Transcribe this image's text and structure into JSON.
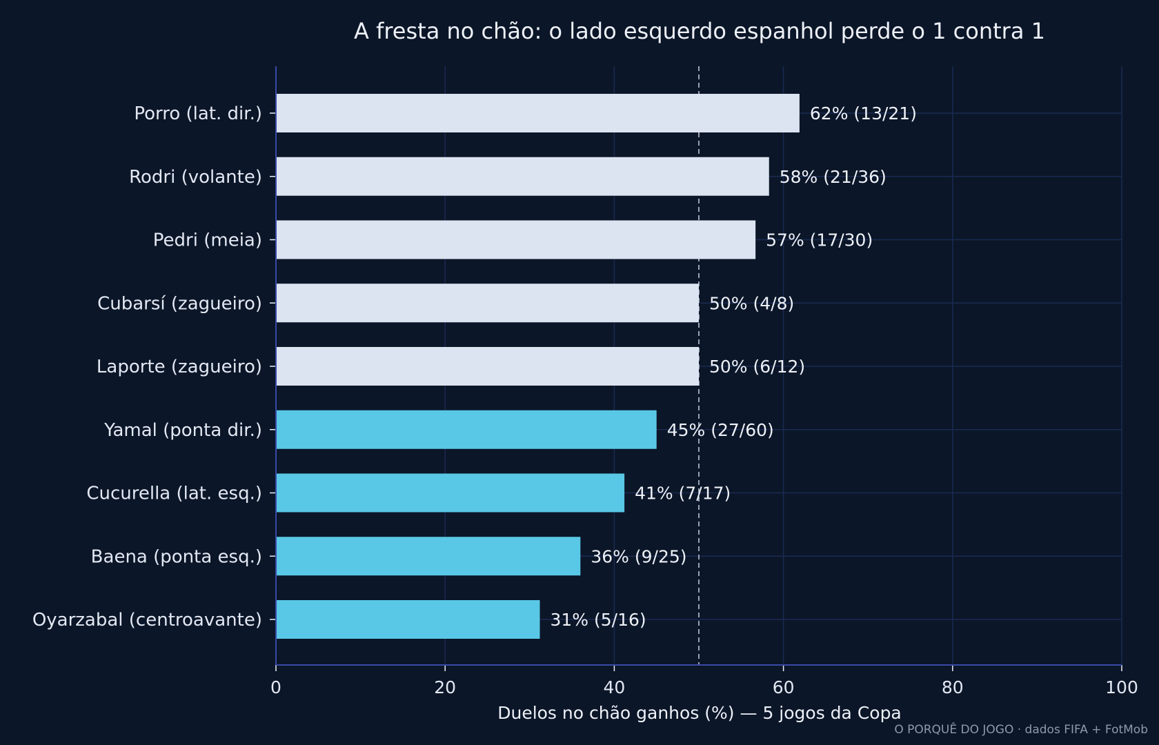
{
  "chart_data": {
    "type": "bar",
    "orientation": "horizontal",
    "title": "A fresta no chão: o lado esquerdo espanhol perde o 1 contra 1",
    "xlabel": "Duelos no chão ganhos (%) — 5 jogos da Copa",
    "ylabel": "",
    "xlim": [
      0,
      100
    ],
    "xticks": [
      0,
      20,
      40,
      60,
      80,
      100
    ],
    "reference_line": 50,
    "grid": true,
    "categories": [
      "Porro (lat. dir.)",
      "Rodri (volante)",
      "Pedri (meia)",
      "Cubarsí (zagueiro)",
      "Laporte (zagueiro)",
      "Yamal (ponta dir.)",
      "Cucurella (lat. esq.)",
      "Baena (ponta esq.)",
      "Oyarzabal (centroavante)"
    ],
    "values": [
      62,
      58,
      57,
      50,
      50,
      45,
      41,
      36,
      31
    ],
    "plot_values": [
      61.9,
      58.3,
      56.7,
      50.0,
      50.0,
      45.0,
      41.2,
      36.0,
      31.2
    ],
    "bar_labels": [
      "62%  (13/21)",
      "58%  (21/36)",
      "57%  (17/30)",
      "50%  (4/8)",
      "50%  (6/12)",
      "45%  (27/60)",
      "41%  (7/17)",
      "36%  (9/25)",
      "31%  (5/16)"
    ],
    "groups": [
      "light",
      "light",
      "light",
      "light",
      "light",
      "highlight",
      "highlight",
      "highlight",
      "highlight"
    ]
  },
  "colors": {
    "background": "#0b1628",
    "bar_light": "#dde4f1",
    "bar_highlight": "#59c8e6",
    "grid": "#1b2a52",
    "axis": "#3a4aa8",
    "reference_line": "#9aa3b5",
    "text": "#eef1f8",
    "credit": "#8f99ad"
  },
  "credit": "O PORQUÊ DO JOGO · dados FIFA + FotMob"
}
